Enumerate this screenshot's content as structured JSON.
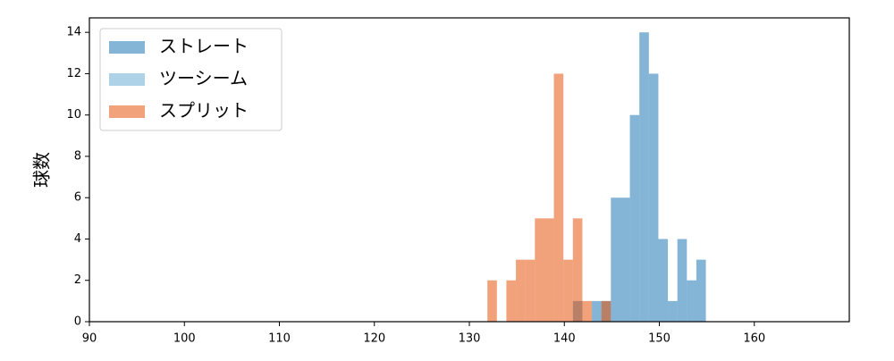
{
  "chart_data": {
    "type": "histogram",
    "ylabel": "球数",
    "xlim": [
      90,
      170
    ],
    "xticks": [
      90,
      100,
      110,
      120,
      130,
      140,
      150,
      160
    ],
    "ylim": [
      0,
      14.7
    ],
    "yticks": [
      0,
      2,
      4,
      6,
      8,
      10,
      12,
      14
    ],
    "legend": "upper left",
    "series": [
      {
        "name": "ストレート",
        "color": "#1f77b4",
        "bins": [
          140.9,
          141.9,
          142.9,
          143.9,
          144.9,
          145.9,
          146.9,
          147.9,
          148.9,
          149.9,
          150.9,
          151.9,
          152.9,
          153.9,
          154.9
        ],
        "values": [
          1,
          0,
          1,
          1,
          6,
          6,
          10,
          14,
          12,
          4,
          1,
          4,
          2,
          3
        ]
      },
      {
        "name": "ツーシーム",
        "color": "#6baed6",
        "values": []
      },
      {
        "name": "スプリット",
        "color": "#e6550d",
        "bins": [
          131.9,
          132.9,
          133.9,
          134.9,
          135.9,
          136.9,
          137.9,
          138.9,
          139.9,
          140.9,
          141.9,
          142.9,
          143.9,
          144.9
        ],
        "values": [
          2,
          0,
          2,
          3,
          3,
          5,
          5,
          12,
          3,
          5,
          1,
          0,
          1
        ]
      }
    ]
  }
}
